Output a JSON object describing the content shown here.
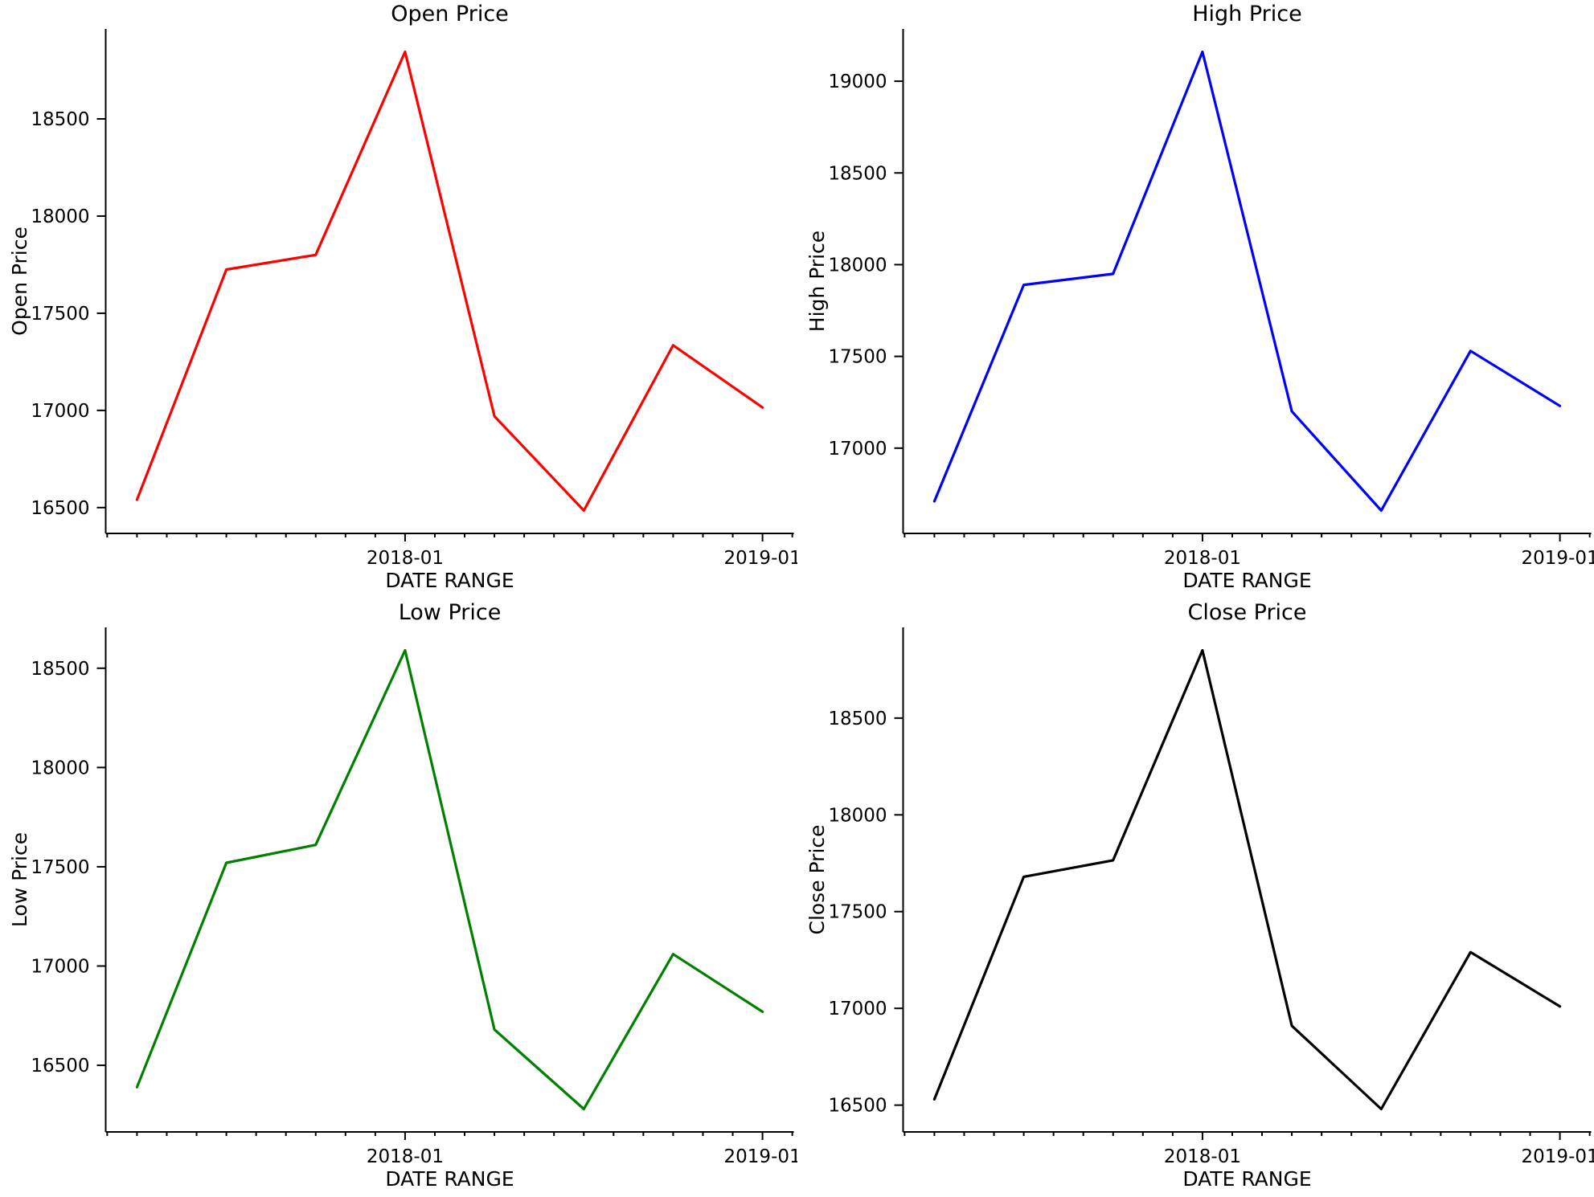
{
  "figure": {
    "background": "#ffffff",
    "layout": "2x2 grid of line subplots, no legend, no grid lines"
  },
  "chart_data": [
    {
      "type": "line",
      "id": "open-price",
      "title": "Open Price",
      "xlabel": "DATE RANGE",
      "ylabel": "Open Price",
      "color": "#ff0000",
      "x": [
        "2017-04",
        "2017-07",
        "2017-10",
        "2018-01",
        "2018-04",
        "2018-07",
        "2018-10",
        "2019-01"
      ],
      "values": [
        16540,
        17725,
        17800,
        18845,
        16970,
        16485,
        17335,
        17015
      ],
      "yticks": [
        16500,
        17000,
        17500,
        18000,
        18500
      ],
      "xticklabels": [
        "2018-01",
        "2019-01"
      ],
      "ylim": [
        16367,
        18963
      ],
      "grid": false,
      "legend": "none",
      "minor_xticks": "monthly"
    },
    {
      "type": "line",
      "id": "high-price",
      "title": "High Price",
      "xlabel": "DATE RANGE",
      "ylabel": "High Price",
      "color": "#0000ff",
      "x": [
        "2017-04",
        "2017-07",
        "2017-10",
        "2018-01",
        "2018-04",
        "2018-07",
        "2018-10",
        "2019-01"
      ],
      "values": [
        16710,
        17890,
        17950,
        19160,
        17200,
        16660,
        17530,
        17230
      ],
      "yticks": [
        17000,
        17500,
        18000,
        18500,
        19000
      ],
      "xticklabels": [
        "2018-01",
        "2019-01"
      ],
      "ylim": [
        16535,
        19285
      ],
      "grid": false,
      "legend": "none",
      "minor_xticks": "monthly"
    },
    {
      "type": "line",
      "id": "low-price",
      "title": "Low Price",
      "xlabel": "DATE RANGE",
      "ylabel": "Low Price",
      "color": "#008000",
      "x": [
        "2017-04",
        "2017-07",
        "2017-10",
        "2018-01",
        "2018-04",
        "2018-07",
        "2018-10",
        "2019-01"
      ],
      "values": [
        16390,
        17520,
        17610,
        18590,
        16680,
        16280,
        17060,
        16770
      ],
      "yticks": [
        16500,
        17000,
        17500,
        18000,
        18500
      ],
      "xticklabels": [
        "2018-01",
        "2019-01"
      ],
      "ylim": [
        16164,
        18706
      ],
      "grid": false,
      "legend": "none",
      "minor_xticks": "monthly"
    },
    {
      "type": "line",
      "id": "close-price",
      "title": "Close Price",
      "xlabel": "DATE RANGE",
      "ylabel": "Close Price",
      "color": "#000000",
      "x": [
        "2017-04",
        "2017-07",
        "2017-10",
        "2018-01",
        "2018-04",
        "2018-07",
        "2018-10",
        "2019-01"
      ],
      "values": [
        16530,
        17680,
        17765,
        18850,
        16910,
        16480,
        17290,
        17010
      ],
      "yticks": [
        16500,
        17000,
        17500,
        18000,
        18500
      ],
      "xticklabels": [
        "2018-01",
        "2019-01"
      ],
      "ylim": [
        16361,
        18969
      ],
      "grid": false,
      "legend": "none",
      "minor_xticks": "monthly"
    }
  ]
}
